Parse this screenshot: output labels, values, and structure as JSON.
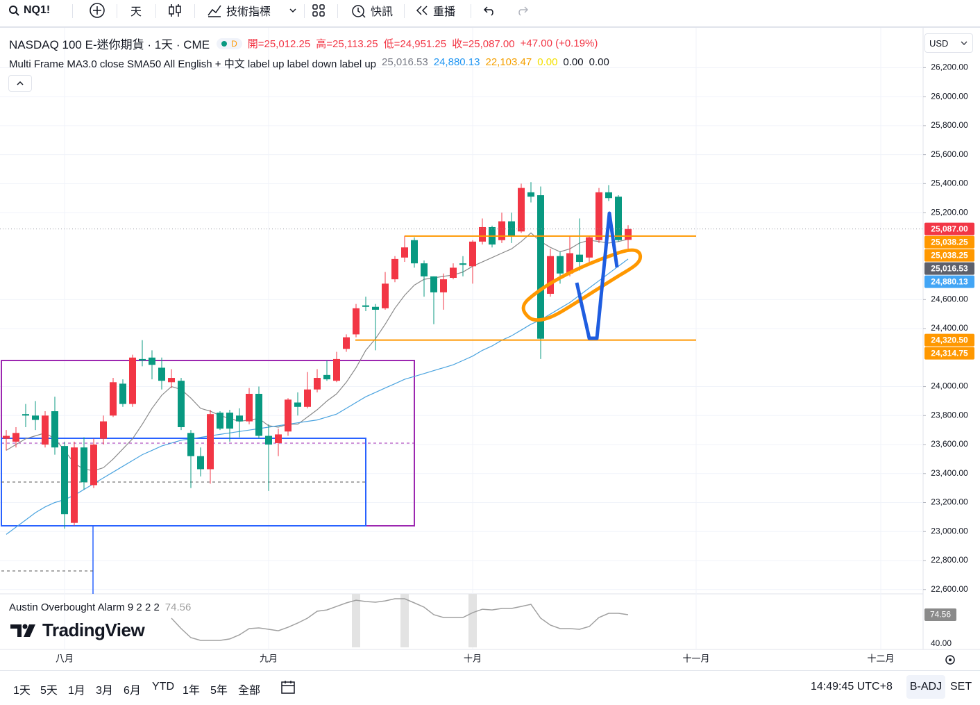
{
  "toolbar": {
    "symbol": "NQ1!",
    "interval": "天",
    "indicators": "技術指標",
    "alerts": "快訊",
    "replay": "重播"
  },
  "legend": {
    "title": "NASDAQ 100 E-迷你期貨 · 1天 · CME",
    "badge": "D",
    "ohlc": [
      "開=25,012.25",
      "高=25,113.25",
      "低=24,951.25",
      "收=25,087.00"
    ],
    "change": "+47.00 (+0.19%)",
    "indicator": "Multi Frame MA3.0 close SMA50 All English + 中文 label up label down label up",
    "indicator_values": [
      {
        "text": "25,016.53",
        "color": "#787b86"
      },
      {
        "text": "24,880.13",
        "color": "#2196f3"
      },
      {
        "text": "22,103.47",
        "color": "#f5a000"
      },
      {
        "text": "0.00",
        "color": "#f3e000"
      },
      {
        "text": "0.00",
        "color": "#131722"
      },
      {
        "text": "0.00",
        "color": "#131722"
      }
    ]
  },
  "currency": "USD",
  "chart_data": {
    "type": "candlestick",
    "up_color": "#f23645",
    "down_color": "#089981",
    "grid": true,
    "categories": [
      null,
      null,
      null,
      null,
      null,
      null,
      "八月",
      null,
      null,
      null,
      null,
      null,
      null,
      null,
      null,
      null,
      null,
      null,
      null,
      null,
      null,
      null,
      null,
      null,
      null,
      null,
      null,
      "九月",
      null,
      null,
      null,
      null,
      null,
      null,
      null,
      null,
      null,
      null,
      null,
      null,
      null,
      null,
      null,
      null,
      null,
      null,
      null,
      null,
      "十月",
      null,
      null,
      null,
      null,
      null,
      null,
      null,
      null,
      null,
      null,
      null,
      null,
      null,
      null,
      null,
      null,
      null,
      null,
      null,
      null,
      null,
      null,
      "十一月",
      null,
      null,
      null,
      null,
      null,
      null,
      null,
      null,
      null,
      null,
      null,
      null,
      null,
      null,
      null,
      null,
      null,
      null,
      "十二月",
      null,
      null,
      null,
      null
    ],
    "open": [
      23640,
      23620,
      23810,
      23800,
      23600,
      23830,
      23590,
      23060,
      23580,
      23320,
      23640,
      23800,
      24020,
      23880,
      24190,
      24200,
      24130,
      24030,
      24040,
      23680,
      23520,
      23430,
      23820,
      23820,
      23800,
      23760,
      23950,
      23660,
      23610,
      23690,
      23890,
      23860,
      23980,
      24080,
      24040,
      24260,
      24360,
      24560,
      24550,
      24540,
      24740,
      24890,
      25010,
      24850,
      24760,
      24650,
      24750,
      24850,
      24830,
      25000,
      25100,
      25010,
      25140,
      25070,
      25340,
      25320,
      24640,
      24900,
      24780,
      24910,
      24890,
      25010,
      25340,
      25310,
      25012.25,
      null,
      null,
      null,
      null,
      null,
      null,
      null,
      null,
      null,
      null,
      null,
      null,
      null,
      null,
      null,
      null,
      null,
      null,
      null,
      null,
      null,
      null,
      null,
      null,
      null,
      null,
      null,
      null,
      null,
      null
    ],
    "high": [
      23700,
      23720,
      23880,
      23900,
      23830,
      23930,
      23620,
      23620,
      23650,
      23640,
      23800,
      24060,
      24050,
      24220,
      24320,
      24250,
      24200,
      24120,
      24060,
      23700,
      23580,
      23840,
      23830,
      23840,
      23850,
      23990,
      24000,
      23740,
      23710,
      23920,
      23960,
      24100,
      24120,
      24180,
      24240,
      24360,
      24570,
      24620,
      24570,
      24790,
      24900,
      25040,
      25030,
      24870,
      24760,
      24780,
      24850,
      24900,
      25010,
      25160,
      25110,
      25200,
      25200,
      25400,
      25410,
      25380,
      24950,
      24930,
      25040,
      25160,
      25040,
      25370,
      25390,
      25320,
      25113.25,
      null,
      null,
      null,
      null,
      null,
      null,
      null,
      null,
      null,
      null,
      null,
      null,
      null,
      null,
      null,
      null,
      null,
      null,
      null,
      null,
      null,
      null,
      null,
      null,
      null,
      null,
      null,
      null,
      null,
      null
    ],
    "low": [
      23560,
      23580,
      23720,
      23700,
      23580,
      23530,
      23020,
      23040,
      23290,
      23300,
      23600,
      23790,
      23860,
      23860,
      24140,
      24050,
      23980,
      23990,
      23700,
      23300,
      23380,
      23330,
      23700,
      23620,
      23650,
      23740,
      23640,
      23280,
      23520,
      23660,
      23800,
      23850,
      23960,
      24040,
      24030,
      24240,
      24340,
      24520,
      24250,
      24530,
      24720,
      24860,
      24820,
      24620,
      24430,
      24530,
      24740,
      24760,
      24710,
      24980,
      24960,
      24990,
      24990,
      25060,
      25270,
      24190,
      24620,
      24710,
      24760,
      24800,
      24850,
      24990,
      25280,
      25000,
      24951.25,
      null,
      null,
      null,
      null,
      null,
      null,
      null,
      null,
      null,
      null,
      null,
      null,
      null,
      null,
      null,
      null,
      null,
      null,
      null,
      null,
      null,
      null,
      null,
      null,
      null,
      null,
      null,
      null,
      null,
      null
    ],
    "close": [
      23660,
      23680,
      23800,
      23770,
      23800,
      23580,
      23120,
      23580,
      23340,
      23600,
      23760,
      24030,
      23880,
      24200,
      24180,
      24150,
      24040,
      24060,
      23720,
      23520,
      23430,
      23810,
      23710,
      23710,
      23760,
      23950,
      23660,
      23600,
      23670,
      23910,
      23860,
      23980,
      24060,
      24050,
      24190,
      24340,
      24540,
      24550,
      24530,
      24710,
      24880,
      24960,
      24850,
      24760,
      24650,
      24740,
      24820,
      24840,
      25000,
      25100,
      24980,
      25140,
      25040,
      25370,
      25310,
      24330,
      24900,
      24780,
      24920,
      24860,
      25030,
      25340,
      25300,
      25010,
      25087,
      null,
      null,
      null,
      null,
      null,
      null,
      null,
      null,
      null,
      null,
      null,
      null,
      null,
      null,
      null,
      null,
      null,
      null,
      null,
      null,
      null,
      null,
      null,
      null,
      null,
      null,
      null,
      null,
      null,
      null
    ],
    "ma_lines": [
      {
        "color": "#8a8a8a",
        "values": [
          23560,
          23600,
          23640,
          23660,
          23680,
          23640,
          23560,
          23470,
          23430,
          23420,
          23440,
          23500,
          23570,
          23640,
          23740,
          23850,
          23940,
          24000,
          23980,
          23920,
          23850,
          23830,
          23800,
          23780,
          23760,
          23770,
          23780,
          23730,
          23720,
          23740,
          23740,
          23790,
          23840,
          23900,
          23950,
          24030,
          24130,
          24250,
          24330,
          24430,
          24540,
          24630,
          24700,
          24740,
          24750,
          24760,
          24770,
          24790,
          24830,
          24860,
          24890,
          24920,
          24950,
          25000,
          25060,
          25000,
          24960,
          24930,
          24950,
          24990,
          25010,
          25000,
          24990,
          25000,
          25016.53,
          null,
          null,
          null,
          null,
          null,
          null,
          null,
          null,
          null,
          null,
          null,
          null,
          null,
          null,
          null,
          null,
          null,
          null,
          null,
          null,
          null,
          null,
          null,
          null,
          null,
          null,
          null,
          null,
          null,
          null
        ]
      },
      {
        "color": "#4aa3df",
        "values": [
          22980,
          23030,
          23080,
          23130,
          23170,
          23200,
          23220,
          23250,
          23290,
          23330,
          23370,
          23410,
          23450,
          23490,
          23530,
          23560,
          23590,
          23610,
          23630,
          23640,
          23650,
          23660,
          23670,
          23680,
          23690,
          23700,
          23710,
          23720,
          23730,
          23740,
          23750,
          23760,
          23770,
          23790,
          23810,
          23850,
          23890,
          23930,
          23960,
          23990,
          24020,
          24050,
          24070,
          24090,
          24110,
          24130,
          24150,
          24180,
          24210,
          24250,
          24280,
          24320,
          24350,
          24390,
          24430,
          24460,
          24500,
          24540,
          24580,
          24630,
          24680,
          24730,
          24780,
          24830,
          24880.13,
          null,
          null,
          null,
          null,
          null,
          null,
          null,
          null,
          null,
          null,
          null,
          null,
          null,
          null,
          null,
          null,
          null,
          null,
          null,
          null,
          null,
          null,
          null,
          null,
          null,
          null,
          null,
          null,
          null,
          null
        ]
      }
    ],
    "ylim": [
      22570,
      26475
    ],
    "yticks": [
      {
        "value": 26200,
        "label": "26,200.00"
      },
      {
        "value": 26000,
        "label": "26,000.00"
      },
      {
        "value": 25800,
        "label": "25,800.00"
      },
      {
        "value": 25600,
        "label": "25,600.00"
      },
      {
        "value": 25400,
        "label": "25,400.00"
      },
      {
        "value": 25200,
        "label": "25,200.00"
      },
      {
        "value": 24600,
        "label": "24,600.00"
      },
      {
        "value": 24400,
        "label": "24,400.00"
      },
      {
        "value": 24000,
        "label": "24,000.00"
      },
      {
        "value": 23800,
        "label": "23,800.00"
      },
      {
        "value": 23600,
        "label": "23,600.00"
      },
      {
        "value": 23400,
        "label": "23,400.00"
      },
      {
        "value": 23200,
        "label": "23,200.00"
      },
      {
        "value": 23000,
        "label": "23,000.00"
      },
      {
        "value": 22800,
        "label": "22,800.00"
      },
      {
        "value": 22600,
        "label": "22,600.00"
      }
    ],
    "price_tags": [
      {
        "value": 25087,
        "label": "25,087.00",
        "color": "#f23645"
      },
      {
        "value": 25038.25,
        "label": "25,038.25",
        "color": "#ff9800"
      },
      {
        "value": 25038.25,
        "label": "25,038.25",
        "color": "#ff9800"
      },
      {
        "value": 25016.53,
        "label": "25,016.53",
        "color": "#5d606b"
      },
      {
        "value": 24880.13,
        "label": "24,880.13",
        "color": "#42a5f5"
      },
      {
        "value": 24320.5,
        "label": "24,320.50",
        "color": "#ff9800"
      },
      {
        "value": 24314.75,
        "label": "24,314.75",
        "color": "#ff9800"
      }
    ]
  },
  "oscillator": {
    "title": "Austin Overbought Alarm 9 2 2 2",
    "value_label": "74.56",
    "color": "#a0a0a0",
    "values": [
      null,
      null,
      null,
      null,
      null,
      null,
      null,
      null,
      null,
      null,
      null,
      null,
      null,
      null,
      null,
      null,
      null,
      70.5,
      58.1,
      47.4,
      44.1,
      44.1,
      44.1,
      45.8,
      50.7,
      58.1,
      58.9,
      57.3,
      55.6,
      59.7,
      64.7,
      70.5,
      78.7,
      80.3,
      84.4,
      88.6,
      91.8,
      90.2,
      89.4,
      91.0,
      93.5,
      93.5,
      88.6,
      83.6,
      74.6,
      71.3,
      71.3,
      71.3,
      77.0,
      81.1,
      80.3,
      82.0,
      82.0,
      84.4,
      86.9,
      70.5,
      62.2,
      58.1,
      58.1,
      57.3,
      60.6,
      71.3,
      76.2,
      76.2,
      74.56,
      null,
      null,
      null,
      null,
      null,
      null,
      null,
      null,
      null,
      null,
      null,
      null,
      null,
      null,
      null,
      null,
      null,
      null,
      null,
      null,
      null,
      null,
      null,
      null,
      null,
      null,
      null,
      null,
      null,
      null
    ],
    "ylim": [
      33.4,
      99.3
    ],
    "yticks": [
      {
        "value": 40,
        "label": "40.00"
      }
    ]
  },
  "watermark": "TradingView",
  "bottom_bar": {
    "ranges": [
      "1天",
      "5天",
      "1月",
      "3月",
      "6月",
      "YTD",
      "1年",
      "5年",
      "全部"
    ],
    "time": "14:49:45 UTC+8",
    "adjustment": "B-ADJ",
    "session": "SET"
  }
}
